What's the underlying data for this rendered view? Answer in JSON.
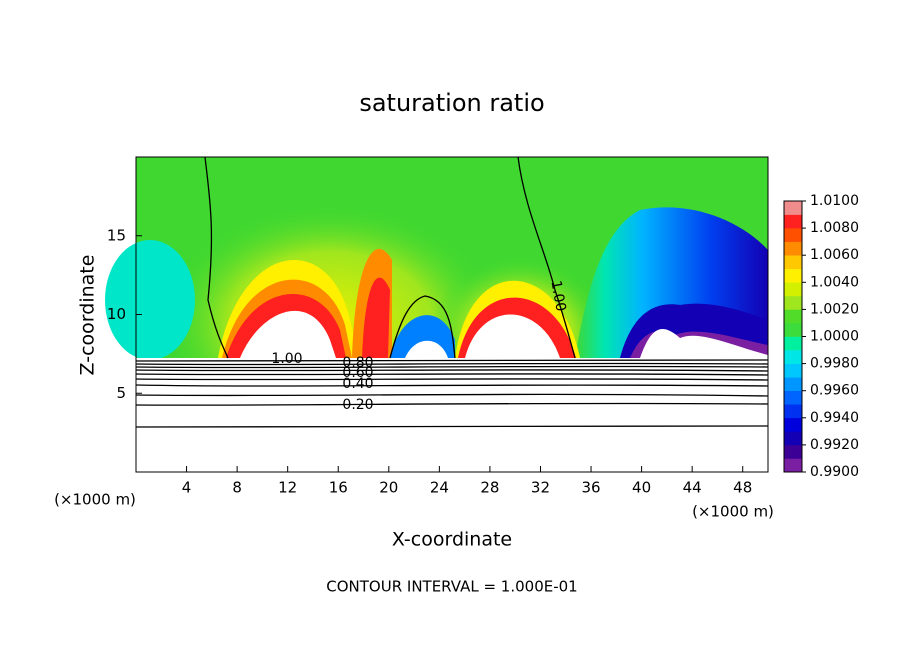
{
  "chart_data": {
    "type": "contour",
    "title": "saturation ratio",
    "x_label": "X-coordinate",
    "y_label": "Z-coordinate",
    "x_unit": "(×1000 m)",
    "x_unit_right": "(×1000 m)",
    "xlim": [
      0,
      50
    ],
    "xticks": [
      4,
      8,
      12,
      16,
      20,
      24,
      28,
      32,
      36,
      40,
      44,
      48
    ],
    "ylim": [
      0,
      20
    ],
    "yticks": [
      5,
      10,
      15
    ],
    "colorbar": {
      "lim": [
        0.99,
        1.01
      ],
      "ticks": [
        {
          "value": 0.99,
          "label": "0.9900"
        },
        {
          "value": 0.992,
          "label": "0.9920"
        },
        {
          "value": 0.994,
          "label": "0.9940"
        },
        {
          "value": 0.996,
          "label": "0.9960"
        },
        {
          "value": 0.998,
          "label": "0.9980"
        },
        {
          "value": 1.0,
          "label": "1.0000"
        },
        {
          "value": 1.002,
          "label": "1.0020"
        },
        {
          "value": 1.004,
          "label": "1.0040"
        },
        {
          "value": 1.006,
          "label": "1.0060"
        },
        {
          "value": 1.008,
          "label": "1.0080"
        },
        {
          "value": 1.01,
          "label": "1.0100"
        }
      ],
      "colors": [
        "#7b1fa2",
        "#3c0096",
        "#1400b4",
        "#0000dc",
        "#0030f0",
        "#0064ff",
        "#0096ff",
        "#00c8ff",
        "#00e6e6",
        "#00f0a0",
        "#3cdc3c",
        "#50dc28",
        "#a0e61e",
        "#d2f000",
        "#fff000",
        "#ffc800",
        "#ff8c00",
        "#ff5000",
        "#ff2020",
        "#f08c8c"
      ]
    },
    "contour_labels": [
      "1.00",
      "0.80",
      "0.60",
      "0.40",
      "0.20",
      "1.00"
    ],
    "footnote": "CONTOUR INTERVAL = 1.000E-01"
  }
}
